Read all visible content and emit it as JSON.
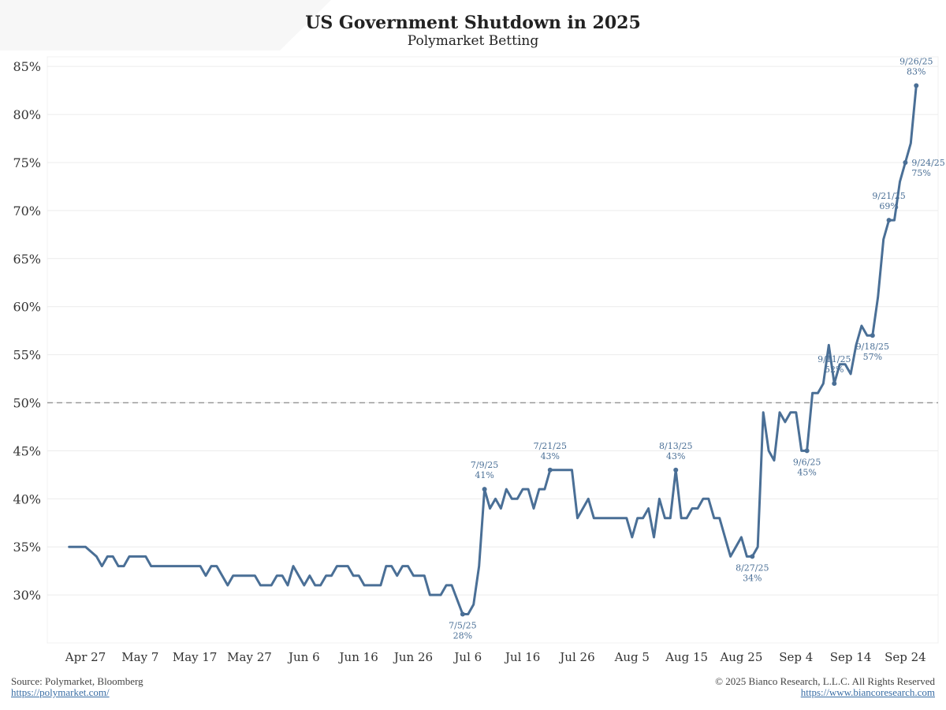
{
  "header": {
    "title": "US Government Shutdown in 2025",
    "subtitle": "Polymarket Betting"
  },
  "footer": {
    "source": "Source: Polymarket, Bloomberg",
    "source_link": "https://polymarket.com/",
    "copyright": "© 2025 Bianco Research, L.L.C. All Rights Reserved",
    "site_link": "https://www.biancoresearch.com"
  },
  "colors": {
    "series": "#4a6f96",
    "grid": "#ececec",
    "reference_line": "#9a9a9a",
    "annotation": "#4a6f96"
  },
  "chart_data": {
    "type": "line",
    "title": "US Government Shutdown in 2025",
    "subtitle": "Polymarket Betting",
    "xlabel": "",
    "ylabel": "",
    "x_ticks": [
      "Apr 27",
      "May 7",
      "May 17",
      "May 27",
      "Jun 6",
      "Jun 16",
      "Jun 26",
      "Jul 6",
      "Jul 16",
      "Jul 26",
      "Aug 5",
      "Aug 15",
      "Aug 25",
      "Sep 4",
      "Sep 14",
      "Sep 24"
    ],
    "y_ticks": [
      "30%",
      "35%",
      "40%",
      "45%",
      "50%",
      "55%",
      "60%",
      "65%",
      "70%",
      "75%",
      "80%",
      "85%"
    ],
    "ylim": [
      25,
      86
    ],
    "xlim": [
      "2025-04-20",
      "2025-09-30"
    ],
    "grid": true,
    "legend": "none",
    "reference_line": {
      "y": 50,
      "style": "dashed"
    },
    "series": [
      {
        "points": [
          [
            "2025-04-24",
            35
          ],
          [
            "2025-04-26",
            35
          ],
          [
            "2025-04-27",
            35
          ],
          [
            "2025-04-29",
            34
          ],
          [
            "2025-04-30",
            33
          ],
          [
            "2025-05-01",
            34
          ],
          [
            "2025-05-02",
            34
          ],
          [
            "2025-05-03",
            33
          ],
          [
            "2025-05-04",
            33
          ],
          [
            "2025-05-05",
            34
          ],
          [
            "2025-05-08",
            34
          ],
          [
            "2025-05-09",
            33
          ],
          [
            "2025-05-17",
            33
          ],
          [
            "2025-05-18",
            33
          ],
          [
            "2025-05-19",
            32
          ],
          [
            "2025-05-20",
            33
          ],
          [
            "2025-05-21",
            33
          ],
          [
            "2025-05-23",
            31
          ],
          [
            "2025-05-24",
            32
          ],
          [
            "2025-05-28",
            32
          ],
          [
            "2025-05-29",
            31
          ],
          [
            "2025-05-31",
            31
          ],
          [
            "2025-06-01",
            32
          ],
          [
            "2025-06-02",
            32
          ],
          [
            "2025-06-03",
            31
          ],
          [
            "2025-06-04",
            33
          ],
          [
            "2025-06-06",
            31
          ],
          [
            "2025-06-07",
            32
          ],
          [
            "2025-06-08",
            31
          ],
          [
            "2025-06-09",
            31
          ],
          [
            "2025-06-10",
            32
          ],
          [
            "2025-06-11",
            32
          ],
          [
            "2025-06-12",
            33
          ],
          [
            "2025-06-14",
            33
          ],
          [
            "2025-06-15",
            32
          ],
          [
            "2025-06-16",
            32
          ],
          [
            "2025-06-17",
            31
          ],
          [
            "2025-06-20",
            31
          ],
          [
            "2025-06-21",
            33
          ],
          [
            "2025-06-22",
            33
          ],
          [
            "2025-06-23",
            32
          ],
          [
            "2025-06-24",
            33
          ],
          [
            "2025-06-25",
            33
          ],
          [
            "2025-06-26",
            32
          ],
          [
            "2025-06-28",
            32
          ],
          [
            "2025-06-29",
            30
          ],
          [
            "2025-07-01",
            30
          ],
          [
            "2025-07-02",
            31
          ],
          [
            "2025-07-03",
            31
          ],
          [
            "2025-07-05",
            28
          ],
          [
            "2025-07-06",
            28
          ],
          [
            "2025-07-07",
            29
          ],
          [
            "2025-07-08",
            33
          ],
          [
            "2025-07-09",
            41
          ],
          [
            "2025-07-10",
            39
          ],
          [
            "2025-07-11",
            40
          ],
          [
            "2025-07-12",
            39
          ],
          [
            "2025-07-13",
            41
          ],
          [
            "2025-07-14",
            40
          ],
          [
            "2025-07-15",
            40
          ],
          [
            "2025-07-16",
            41
          ],
          [
            "2025-07-17",
            41
          ],
          [
            "2025-07-18",
            39
          ],
          [
            "2025-07-19",
            41
          ],
          [
            "2025-07-20",
            41
          ],
          [
            "2025-07-21",
            43
          ],
          [
            "2025-07-25",
            43
          ],
          [
            "2025-07-26",
            38
          ],
          [
            "2025-07-28",
            40
          ],
          [
            "2025-07-29",
            38
          ],
          [
            "2025-08-04",
            38
          ],
          [
            "2025-08-05",
            36
          ],
          [
            "2025-08-06",
            38
          ],
          [
            "2025-08-07",
            38
          ],
          [
            "2025-08-08",
            39
          ],
          [
            "2025-08-09",
            36
          ],
          [
            "2025-08-10",
            40
          ],
          [
            "2025-08-11",
            38
          ],
          [
            "2025-08-12",
            38
          ],
          [
            "2025-08-13",
            43
          ],
          [
            "2025-08-14",
            38
          ],
          [
            "2025-08-15",
            38
          ],
          [
            "2025-08-16",
            39
          ],
          [
            "2025-08-17",
            39
          ],
          [
            "2025-08-18",
            40
          ],
          [
            "2025-08-19",
            40
          ],
          [
            "2025-08-20",
            38
          ],
          [
            "2025-08-21",
            38
          ],
          [
            "2025-08-23",
            34
          ],
          [
            "2025-08-25",
            36
          ],
          [
            "2025-08-26",
            34
          ],
          [
            "2025-08-27",
            34
          ],
          [
            "2025-08-28",
            35
          ],
          [
            "2025-08-29",
            49
          ],
          [
            "2025-08-30",
            45
          ],
          [
            "2025-08-31",
            44
          ],
          [
            "2025-09-01",
            49
          ],
          [
            "2025-09-02",
            48
          ],
          [
            "2025-09-03",
            49
          ],
          [
            "2025-09-04",
            49
          ],
          [
            "2025-09-05",
            45
          ],
          [
            "2025-09-06",
            45
          ],
          [
            "2025-09-07",
            51
          ],
          [
            "2025-09-08",
            51
          ],
          [
            "2025-09-09",
            52
          ],
          [
            "2025-09-10",
            56
          ],
          [
            "2025-09-11",
            52
          ],
          [
            "2025-09-12",
            54
          ],
          [
            "2025-09-13",
            54
          ],
          [
            "2025-09-14",
            53
          ],
          [
            "2025-09-15",
            56
          ],
          [
            "2025-09-16",
            58
          ],
          [
            "2025-09-17",
            57
          ],
          [
            "2025-09-18",
            57
          ],
          [
            "2025-09-19",
            61
          ],
          [
            "2025-09-20",
            67
          ],
          [
            "2025-09-21",
            69
          ],
          [
            "2025-09-22",
            69
          ],
          [
            "2025-09-23",
            73
          ],
          [
            "2025-09-24",
            75
          ],
          [
            "2025-09-25",
            77
          ],
          [
            "2025-09-26",
            83
          ]
        ]
      }
    ],
    "annotations": [
      {
        "x": "2025-07-05",
        "y": 28,
        "date": "7/5/25",
        "value": "28%",
        "position": "below"
      },
      {
        "x": "2025-07-09",
        "y": 41,
        "date": "7/9/25",
        "value": "41%",
        "position": "above"
      },
      {
        "x": "2025-07-21",
        "y": 43,
        "date": "7/21/25",
        "value": "43%",
        "position": "above"
      },
      {
        "x": "2025-08-13",
        "y": 43,
        "date": "8/13/25",
        "value": "43%",
        "position": "above"
      },
      {
        "x": "2025-08-27",
        "y": 34,
        "date": "8/27/25",
        "value": "34%",
        "position": "below"
      },
      {
        "x": "2025-09-06",
        "y": 45,
        "date": "9/6/25",
        "value": "45%",
        "position": "below"
      },
      {
        "x": "2025-09-11",
        "y": 52,
        "date": "9/11/25",
        "value": "52%",
        "position": "above"
      },
      {
        "x": "2025-09-18",
        "y": 57,
        "date": "9/18/25",
        "value": "57%",
        "position": "below"
      },
      {
        "x": "2025-09-21",
        "y": 69,
        "date": "9/21/25",
        "value": "69%",
        "position": "above"
      },
      {
        "x": "2025-09-24",
        "y": 75,
        "date": "9/24/25",
        "value": "75%",
        "position": "right"
      },
      {
        "x": "2025-09-26",
        "y": 83,
        "date": "9/26/25",
        "value": "83%",
        "position": "above"
      }
    ]
  }
}
